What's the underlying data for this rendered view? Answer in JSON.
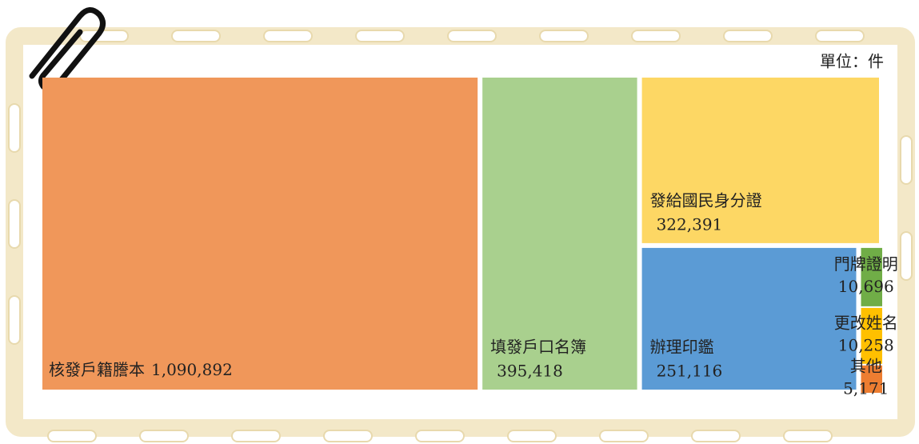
{
  "chart_data": {
    "type": "treemap",
    "unit": "單位：件",
    "categories": [
      "核發戶籍謄本",
      "填發戶口名簿",
      "發給國民身分證",
      "辦理印鑑",
      "門牌證明",
      "更改姓名",
      "其他"
    ],
    "values": [
      1090892,
      395418,
      322391,
      251116,
      10696,
      10258,
      5171
    ],
    "value_labels": [
      "1,090,892",
      "395,418",
      "322,391",
      "251,116",
      "10,696",
      "10,258",
      "5,171"
    ],
    "colors": [
      "#f0975a",
      "#a9d08e",
      "#fdd764",
      "#5b9bd5",
      "#70ad47",
      "#ffc000",
      "#ed7d31"
    ]
  }
}
